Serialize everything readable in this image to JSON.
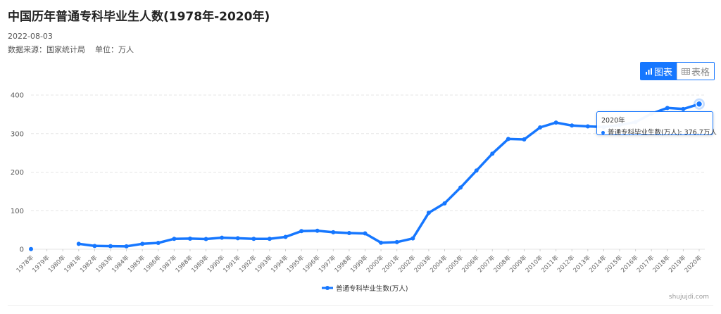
{
  "header": {
    "title": "中国历年普通专科毕业生人数(1978年-2020年)",
    "date": "2022-08-03",
    "source": "数据来源：国家统计局",
    "unit": "单位：万人"
  },
  "toolbar": {
    "chart_label": "图表",
    "table_label": "表格"
  },
  "tooltip": {
    "title": "2020年",
    "text": "普通专科毕业生数(万人): 376.7万人"
  },
  "credit": "shujujdi.com",
  "colors": {
    "accent": "#1677ff",
    "grid": "#e5e5e5"
  },
  "chart_data": {
    "type": "line",
    "title": "中国历年普通专科毕业生人数(1978年-2020年)",
    "xlabel": "",
    "ylabel": "",
    "ylim": [
      0,
      400
    ],
    "yticks": [
      0,
      100,
      200,
      300,
      400
    ],
    "grid": true,
    "legend": "bottom-center",
    "categories": [
      "1978年",
      "1979年",
      "1980年",
      "1981年",
      "1982年",
      "1983年",
      "1984年",
      "1985年",
      "1986年",
      "1987年",
      "1988年",
      "1989年",
      "1990年",
      "1991年",
      "1992年",
      "1993年",
      "1994年",
      "1995年",
      "1996年",
      "1997年",
      "1998年",
      "1999年",
      "2000年",
      "2001年",
      "2002年",
      "2003年",
      "2004年",
      "2005年",
      "2006年",
      "2007年",
      "2008年",
      "2009年",
      "2010年",
      "2011年",
      "2012年",
      "2013年",
      "2014年",
      "2015年",
      "2016年",
      "2017年",
      "2018年",
      "2019年",
      "2020年"
    ],
    "series": [
      {
        "name": "普通专科毕业生数(万人)",
        "values": [
          0.5,
          null,
          null,
          14,
          8.5,
          8,
          7.5,
          14,
          16.5,
          27,
          27.5,
          26.5,
          30,
          28.5,
          27,
          27,
          32,
          47,
          48,
          44,
          42,
          41,
          17,
          18.5,
          28,
          94.5,
          119,
          160,
          204,
          248,
          286,
          285,
          316,
          328.5,
          320.9,
          318.7,
          317,
          322.3,
          329.8,
          351.6,
          366.5,
          363.8,
          376.7
        ]
      }
    ]
  }
}
